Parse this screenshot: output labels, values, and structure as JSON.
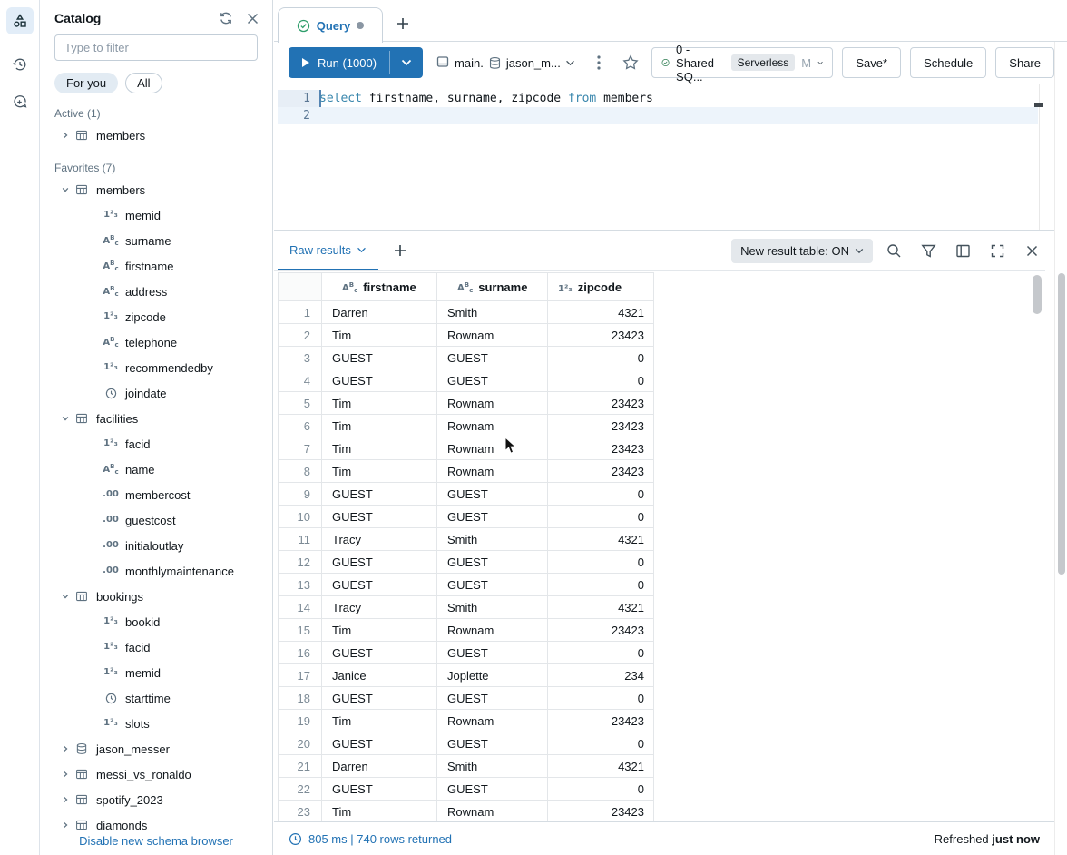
{
  "rail": {
    "items": [
      {
        "name": "schema-browser-icon",
        "active": true
      },
      {
        "name": "history-icon",
        "active": false
      },
      {
        "name": "assistant-icon",
        "active": false
      }
    ]
  },
  "sidebar": {
    "title": "Catalog",
    "header_icons": [
      "refresh-icon",
      "close-icon"
    ],
    "filter_placeholder": "Type to filter",
    "pills": [
      {
        "label": "For you",
        "active": true
      },
      {
        "label": "All",
        "active": false
      }
    ],
    "sections": [
      {
        "label": "Active (1)",
        "items": [
          {
            "label": "members",
            "icon": "table",
            "caret": "collapsed",
            "level": 0
          }
        ]
      },
      {
        "label": "Favorites (7)",
        "items": [
          {
            "label": "members",
            "icon": "table",
            "caret": "expanded",
            "level": 0
          },
          {
            "label": "memid",
            "icon": "int",
            "level": 1
          },
          {
            "label": "surname",
            "icon": "string",
            "level": 1
          },
          {
            "label": "firstname",
            "icon": "string",
            "level": 1
          },
          {
            "label": "address",
            "icon": "string",
            "level": 1
          },
          {
            "label": "zipcode",
            "icon": "int",
            "level": 1
          },
          {
            "label": "telephone",
            "icon": "string",
            "level": 1
          },
          {
            "label": "recommendedby",
            "icon": "int",
            "level": 1
          },
          {
            "label": "joindate",
            "icon": "date",
            "level": 1
          },
          {
            "label": "facilities",
            "icon": "table",
            "caret": "expanded",
            "level": 0
          },
          {
            "label": "facid",
            "icon": "int",
            "level": 1
          },
          {
            "label": "name",
            "icon": "string",
            "level": 1
          },
          {
            "label": "membercost",
            "icon": "decimal",
            "level": 1
          },
          {
            "label": "guestcost",
            "icon": "decimal",
            "level": 1
          },
          {
            "label": "initialoutlay",
            "icon": "decimal",
            "level": 1
          },
          {
            "label": "monthlymaintenance",
            "icon": "decimal",
            "level": 1
          },
          {
            "label": "bookings",
            "icon": "table",
            "caret": "expanded",
            "level": 0
          },
          {
            "label": "bookid",
            "icon": "int",
            "level": 1
          },
          {
            "label": "facid",
            "icon": "int",
            "level": 1
          },
          {
            "label": "memid",
            "icon": "int",
            "level": 1
          },
          {
            "label": "starttime",
            "icon": "date",
            "level": 1
          },
          {
            "label": "slots",
            "icon": "int",
            "level": 1
          },
          {
            "label": "jason_messer",
            "icon": "database",
            "caret": "collapsed",
            "level": 0
          },
          {
            "label": "messi_vs_ronaldo",
            "icon": "table",
            "caret": "collapsed",
            "level": 0
          },
          {
            "label": "spotify_2023",
            "icon": "table",
            "caret": "collapsed",
            "level": 0
          },
          {
            "label": "diamonds",
            "icon": "table",
            "caret": "collapsed",
            "level": 0
          }
        ]
      }
    ],
    "footer_link": "Disable new schema browser"
  },
  "tabs": {
    "active_label": "Query",
    "active_status_icon": "check-circle-icon",
    "dirty_dot": true,
    "new_tab_icon": "plus-icon"
  },
  "toolbar": {
    "run_label": "Run (1000)",
    "context_catalog": "main.",
    "context_schema": "jason_m...",
    "warehouse": {
      "name": "0 - Shared SQ...",
      "badge": "Serverless",
      "size": "M"
    },
    "save_label": "Save*",
    "schedule_label": "Schedule",
    "share_label": "Share"
  },
  "editor": {
    "lines": [
      {
        "number": "1",
        "tokens": [
          {
            "text": "select",
            "kw": true
          },
          {
            "text": " firstname, surname, zipcode "
          },
          {
            "text": "from",
            "kw": true
          },
          {
            "text": " members"
          }
        ]
      },
      {
        "number": "2",
        "tokens": [],
        "current": true
      }
    ]
  },
  "results": {
    "tab_label": "Raw results",
    "new_result_table_label": "New result table: ON",
    "toolbar_icons": [
      "search-icon",
      "filter-icon",
      "side-panel-icon",
      "fullscreen-icon",
      "close-icon"
    ],
    "columns": [
      {
        "label": "firstname",
        "type": "string"
      },
      {
        "label": "surname",
        "type": "string"
      },
      {
        "label": "zipcode",
        "type": "int"
      }
    ],
    "rows": [
      [
        "1",
        "Darren",
        "Smith",
        "4321"
      ],
      [
        "2",
        "Tim",
        "Rownam",
        "23423"
      ],
      [
        "3",
        "GUEST",
        "GUEST",
        "0"
      ],
      [
        "4",
        "GUEST",
        "GUEST",
        "0"
      ],
      [
        "5",
        "Tim",
        "Rownam",
        "23423"
      ],
      [
        "6",
        "Tim",
        "Rownam",
        "23423"
      ],
      [
        "7",
        "Tim",
        "Rownam",
        "23423"
      ],
      [
        "8",
        "Tim",
        "Rownam",
        "23423"
      ],
      [
        "9",
        "GUEST",
        "GUEST",
        "0"
      ],
      [
        "10",
        "GUEST",
        "GUEST",
        "0"
      ],
      [
        "11",
        "Tracy",
        "Smith",
        "4321"
      ],
      [
        "12",
        "GUEST",
        "GUEST",
        "0"
      ],
      [
        "13",
        "GUEST",
        "GUEST",
        "0"
      ],
      [
        "14",
        "Tracy",
        "Smith",
        "4321"
      ],
      [
        "15",
        "Tim",
        "Rownam",
        "23423"
      ],
      [
        "16",
        "GUEST",
        "GUEST",
        "0"
      ],
      [
        "17",
        "Janice",
        "Joplette",
        "234"
      ],
      [
        "18",
        "GUEST",
        "GUEST",
        "0"
      ],
      [
        "19",
        "Tim",
        "Rownam",
        "23423"
      ],
      [
        "20",
        "GUEST",
        "GUEST",
        "0"
      ],
      [
        "21",
        "Darren",
        "Smith",
        "4321"
      ],
      [
        "22",
        "GUEST",
        "GUEST",
        "0"
      ],
      [
        "23",
        "Tim",
        "Rownam",
        "23423"
      ]
    ],
    "status_text": "805 ms | 740 rows returned",
    "refreshed_prefix": "Refreshed",
    "refreshed_value": "just now"
  },
  "colors": {
    "primary_blue": "#2272b4",
    "success_green": "#2e9e6b",
    "keyword_blue": "#3a87ad",
    "muted_gray": "#5f7281",
    "border_gray": "#d5dce2",
    "active_line_bg": "#edf4fb"
  }
}
